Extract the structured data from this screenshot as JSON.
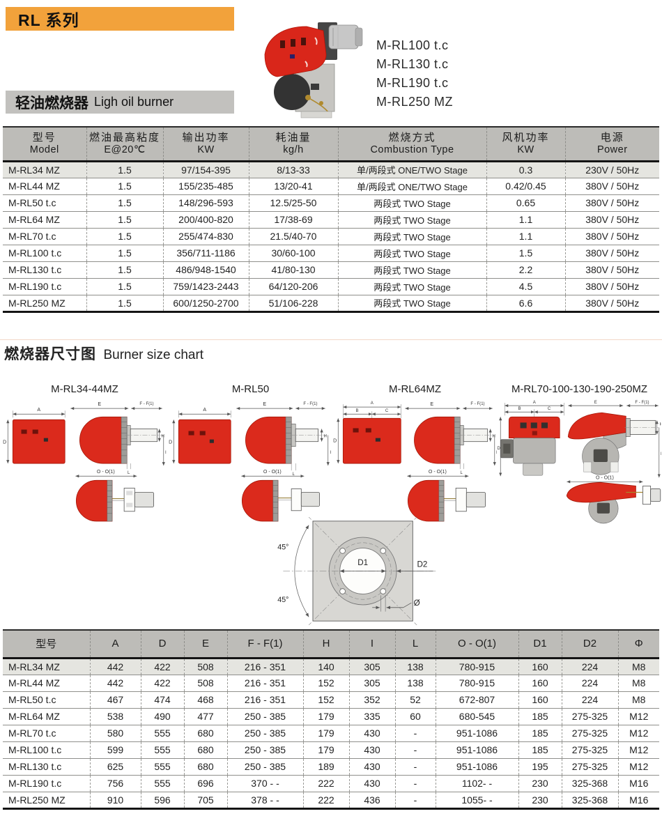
{
  "page": {
    "series_banner": "RL 系列",
    "product_banner_zh": "轻油燃烧器",
    "product_banner_en": "Ligh oil burner",
    "size_chart_title_zh": "燃烧器尺寸图",
    "size_chart_title_en": "Burner size chart",
    "product_models": [
      "M-RL100 t.c",
      "M-RL130 t.c",
      "M-RL190 t.c",
      "M-RL250 MZ"
    ]
  },
  "colors": {
    "accent_orange": "#F2A23B",
    "banner_gray": "#C2C1BE",
    "table_header_gray": "#BDBCB8",
    "row_highlight": "#E5E5E0",
    "burner_red": "#DB2A1C"
  },
  "spec_table": {
    "headers": [
      {
        "zh": "型号",
        "en": "Model"
      },
      {
        "zh": "燃油最高粘度",
        "en": "E@20℃"
      },
      {
        "zh": "输出功率",
        "en": "KW"
      },
      {
        "zh": "耗油量",
        "en": "kg/h"
      },
      {
        "zh": "燃烧方式",
        "en": "Combustion Type"
      },
      {
        "zh": "风机功率",
        "en": "KW"
      },
      {
        "zh": "电源",
        "en": "Power"
      }
    ],
    "rows": [
      [
        "M-RL34 MZ",
        "1.5",
        "97/154-395",
        "8/13-33",
        "单/两段式  ONE/TWO Stage",
        "0.3",
        "230V / 50Hz"
      ],
      [
        "M-RL44 MZ",
        "1.5",
        "155/235-485",
        "13/20-41",
        "单/两段式 ONE/TWO Stage",
        "0.42/0.45",
        "380V / 50Hz"
      ],
      [
        "M-RL50 t.c",
        "1.5",
        "148/296-593",
        "12.5/25-50",
        "两段式  TWO Stage",
        "0.65",
        "380V / 50Hz"
      ],
      [
        "M-RL64 MZ",
        "1.5",
        "200/400-820",
        "17/38-69",
        "两段式  TWO Stage",
        "1.1",
        "380V / 50Hz"
      ],
      [
        "M-RL70 t.c",
        "1.5",
        "255/474-830",
        "21.5/40-70",
        "两段式  TWO Stage",
        "1.1",
        "380V / 50Hz"
      ],
      [
        "M-RL100 t.c",
        "1.5",
        "356/711-1186",
        "30/60-100",
        "两段式  TWO Stage",
        "1.5",
        "380V / 50Hz"
      ],
      [
        "M-RL130 t.c",
        "1.5",
        "486/948-1540",
        "41/80-130",
        "两段式  TWO Stage",
        "2.2",
        "380V / 50Hz"
      ],
      [
        "M-RL190 t.c",
        "1.5",
        "759/1423-2443",
        "64/120-206",
        "两段式  TWO Stage",
        "4.5",
        "380V / 50Hz"
      ],
      [
        "M-RL250 MZ",
        "1.5",
        "600/1250-2700",
        "51/106-228",
        "两段式  TWO Stage",
        "6.6",
        "380V / 50Hz"
      ]
    ]
  },
  "dims": {
    "A": "A",
    "B": "B",
    "C": "C",
    "D": "D",
    "E": "E",
    "F": "F - F(1)",
    "H": "H",
    "I": "I",
    "L": "L",
    "O": "O - O(1)"
  },
  "diagrams": {
    "group1_title": "M-RL34-44MZ",
    "group2_title": "M-RL50",
    "group3_title": "M-RL64MZ",
    "group4_title": "M-RL70-100-130-190-250MZ",
    "flange": {
      "d1": "D1",
      "d2": "D2",
      "angle_top": "45°",
      "angle_bottom": "45°",
      "hole_dia": "Ø"
    }
  },
  "dimension_table": {
    "headers": [
      "型号",
      "A",
      "D",
      "E",
      "F - F(1)",
      "H",
      "I",
      "L",
      "O - O(1)",
      "D1",
      "D2",
      "Φ"
    ],
    "rows": [
      [
        "M-RL34 MZ",
        "442",
        "422",
        "508",
        "216 - 351",
        "140",
        "305",
        "138",
        "780-915",
        "160",
        "224",
        "M8"
      ],
      [
        "M-RL44 MZ",
        "442",
        "422",
        "508",
        "216 - 351",
        "152",
        "305",
        "138",
        "780-915",
        "160",
        "224",
        "M8"
      ],
      [
        "M-RL50 t.c",
        "467",
        "474",
        "468",
        "216 - 351",
        "152",
        "352",
        "52",
        "672-807",
        "160",
        "224",
        "M8"
      ],
      [
        "M-RL64 MZ",
        "538",
        "490",
        "477",
        "250 - 385",
        "179",
        "335",
        "60",
        "680-545",
        "185",
        "275-325",
        "M12"
      ],
      [
        "M-RL70 t.c",
        "580",
        "555",
        "680",
        "250 - 385",
        "179",
        "430",
        "-",
        "951-1086",
        "185",
        "275-325",
        "M12"
      ],
      [
        "M-RL100 t.c",
        "599",
        "555",
        "680",
        "250 - 385",
        "179",
        "430",
        "-",
        "951-1086",
        "185",
        "275-325",
        "M12"
      ],
      [
        "M-RL130 t.c",
        "625",
        "555",
        "680",
        "250 - 385",
        "189",
        "430",
        "-",
        "951-1086",
        "195",
        "275-325",
        "M12"
      ],
      [
        "M-RL190 t.c",
        "756",
        "555",
        "696",
        "370 -  -",
        "222",
        "430",
        "-",
        "1102-  -",
        "230",
        "325-368",
        "M16"
      ],
      [
        "M-RL250 MZ",
        "910",
        "596",
        "705",
        "378 -  -",
        "222",
        "436",
        "-",
        "1055-  -",
        "230",
        "325-368",
        "M16"
      ]
    ]
  }
}
